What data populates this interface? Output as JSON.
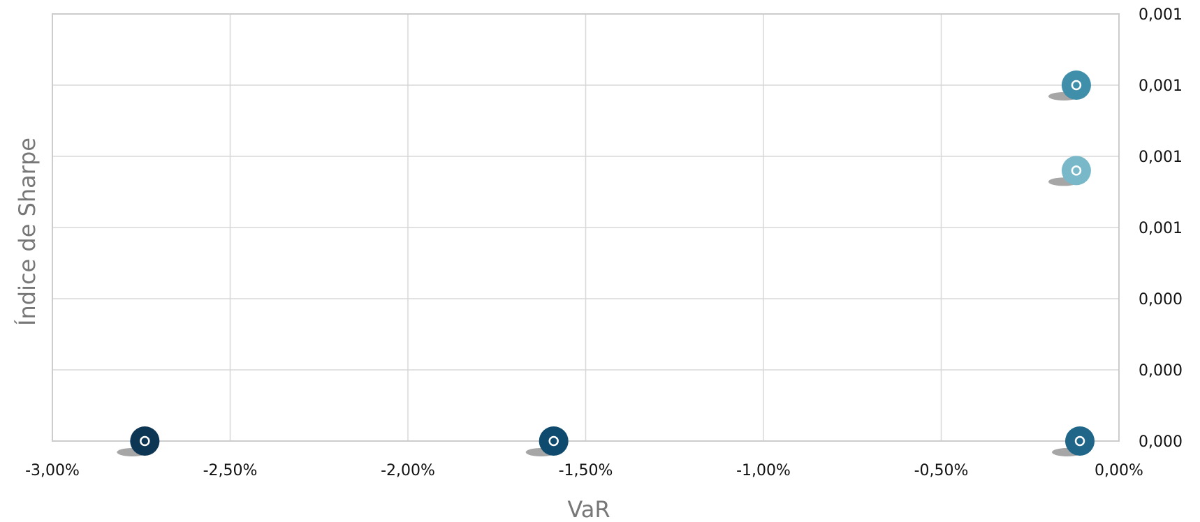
{
  "chart_data": {
    "type": "scatter",
    "xlabel": "VaR",
    "ylabel": "Índice de Sharpe",
    "x_tick_labels": [
      "-3,00%",
      "-2,50%",
      "-2,00%",
      "-1,50%",
      "-1,00%",
      "-0,50%",
      "0,00%"
    ],
    "y_tick_labels": [
      "0,000",
      "0,000",
      "0,000",
      "0,001",
      "0,001",
      "0,001",
      "0,001"
    ],
    "xlim": [
      -3.0,
      0.0
    ],
    "ylim": [
      0.0,
      0.0012
    ],
    "grid": true,
    "y_axis_side": "right",
    "points": [
      {
        "x": -2.74,
        "y": 0.0,
        "color": "#0d3554"
      },
      {
        "x": -1.59,
        "y": 0.0,
        "color": "#0e4a6e"
      },
      {
        "x": -0.11,
        "y": 0.0,
        "color": "#1f6688"
      },
      {
        "x": -0.12,
        "y": 0.00076,
        "color": "#78b8c9"
      },
      {
        "x": -0.12,
        "y": 0.001,
        "color": "#3f8eaa"
      }
    ]
  }
}
